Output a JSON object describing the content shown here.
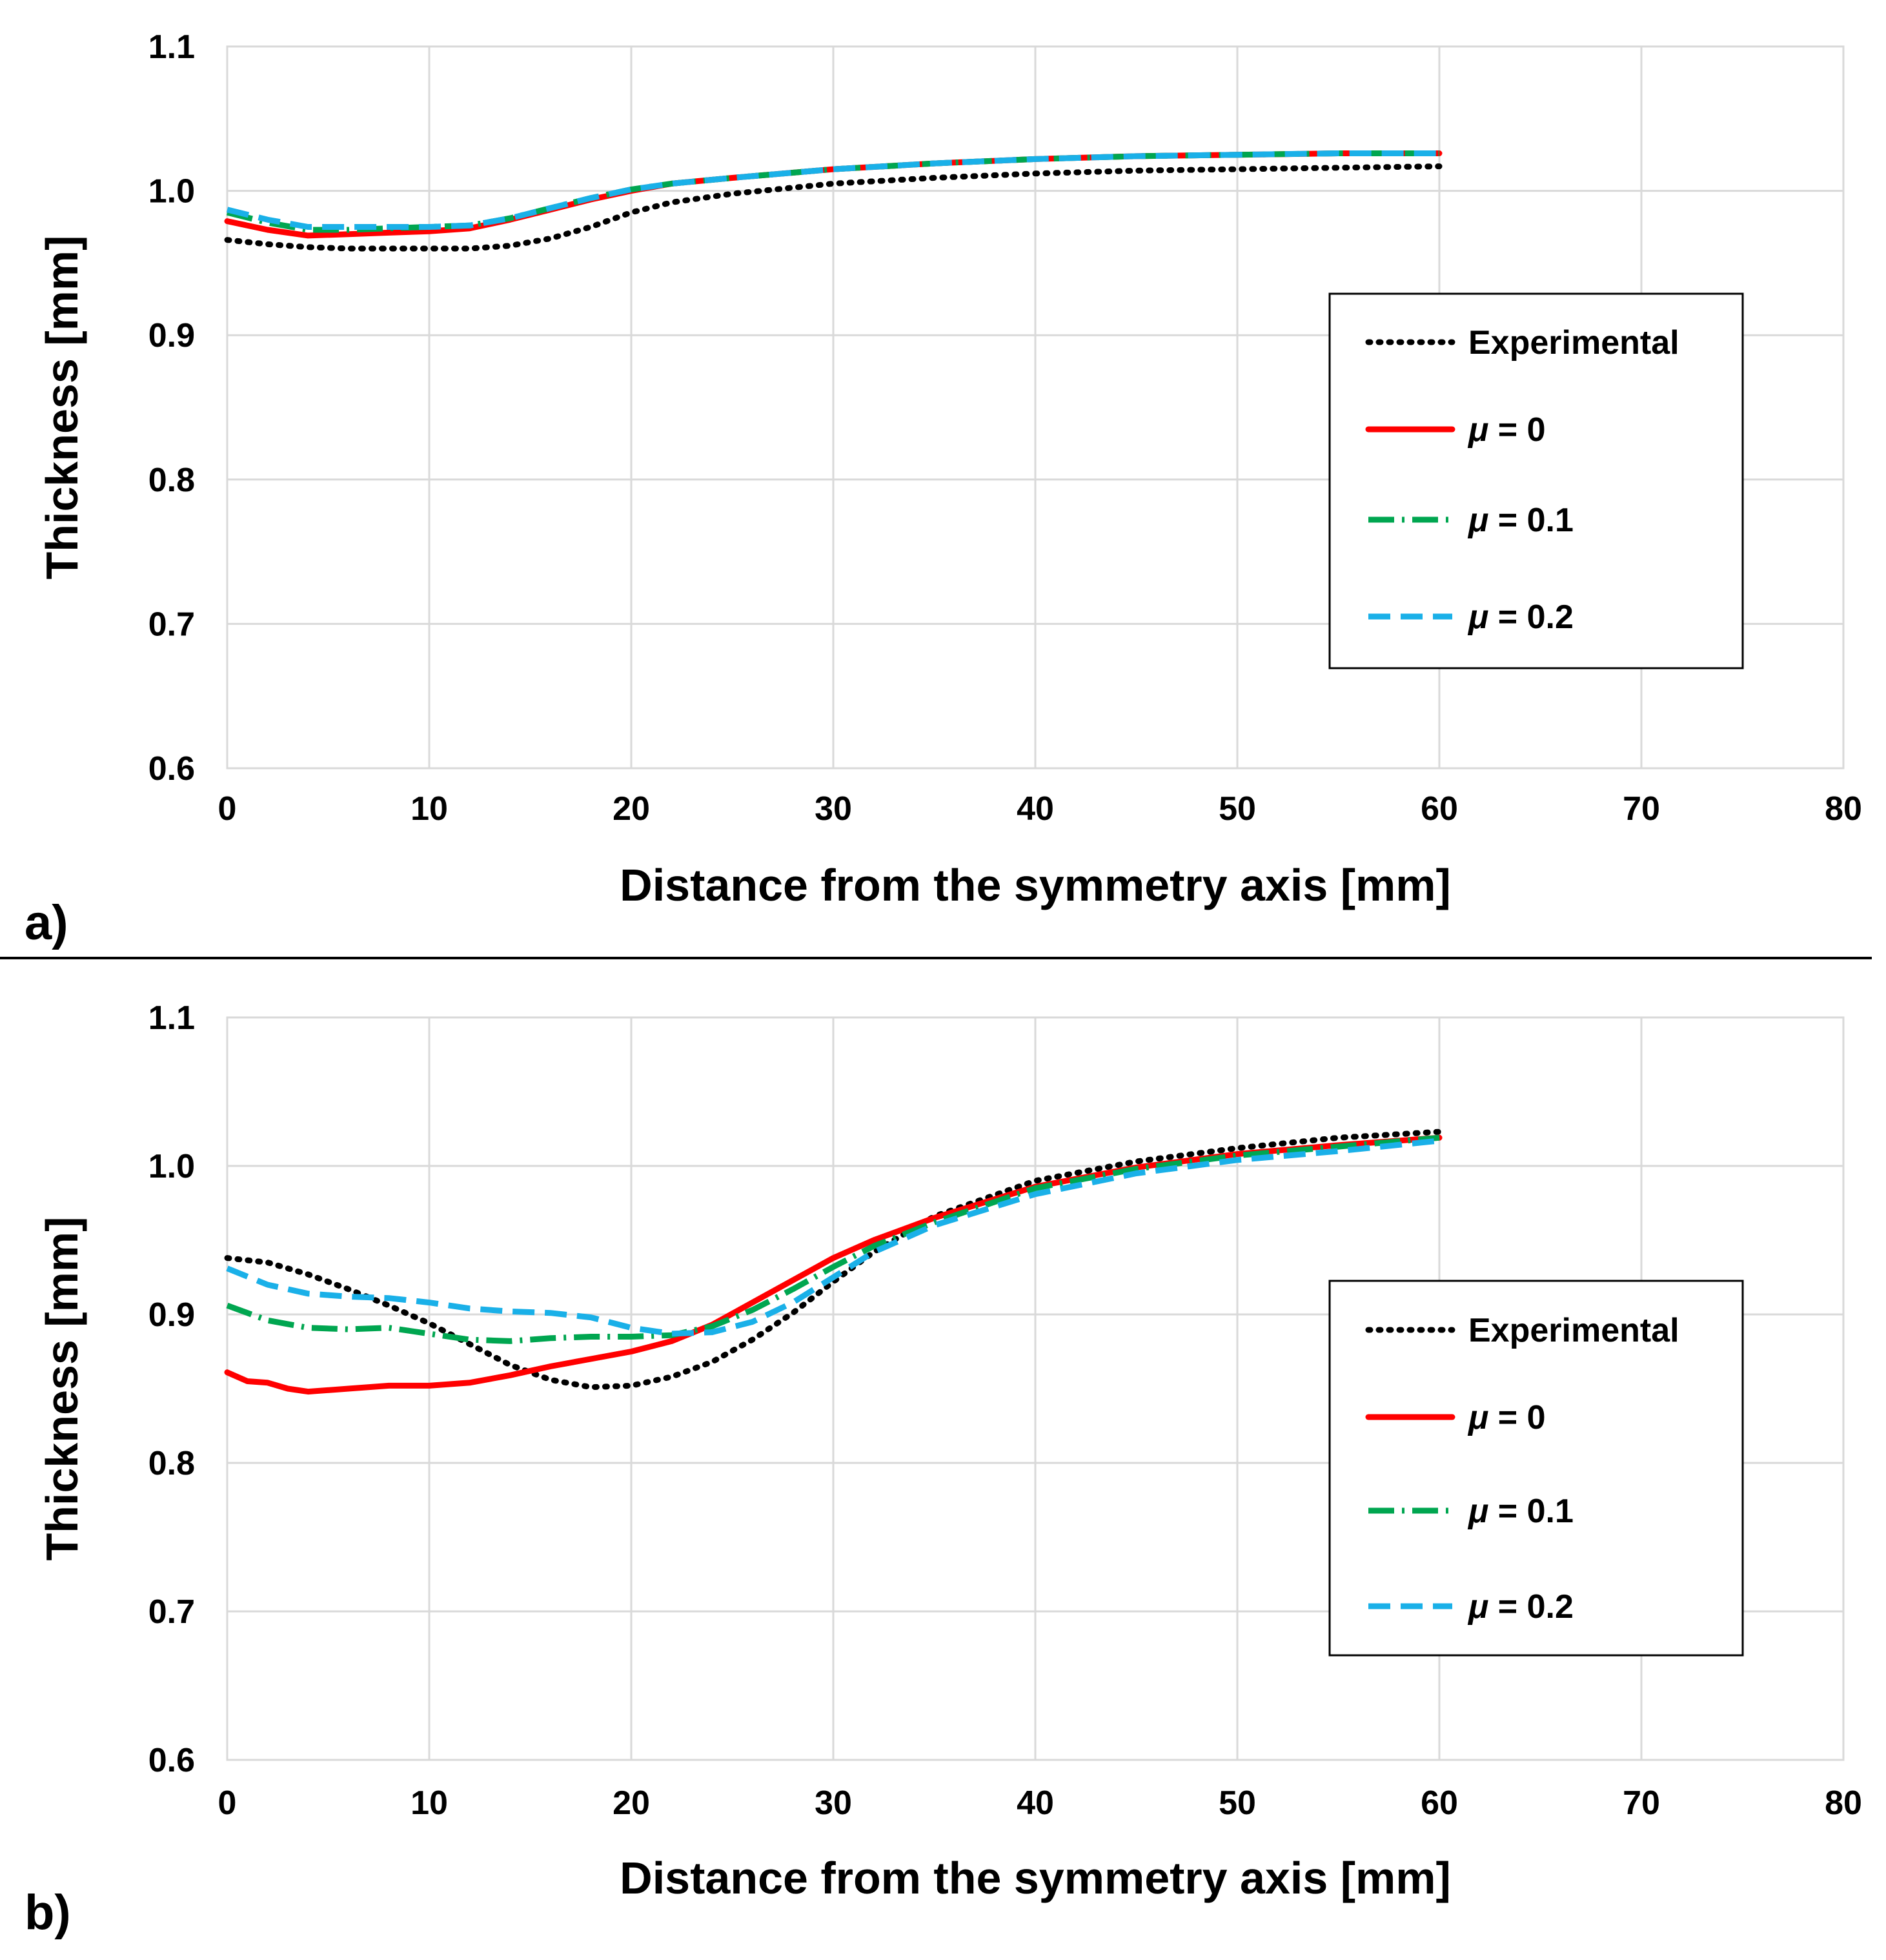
{
  "chart_data": [
    {
      "panel_label": "a)",
      "type": "line",
      "xlabel": "Distance from the symmetry axis  [mm]",
      "ylabel": "Thickness [mm]",
      "xlim": [
        0,
        80
      ],
      "ylim": [
        0.6,
        1.1
      ],
      "xticks": [
        "0",
        "10",
        "20",
        "30",
        "40",
        "50",
        "60",
        "70",
        "80"
      ],
      "yticks": [
        "0.6",
        "0.7",
        "0.8",
        "0.9",
        "1.0",
        "1.1"
      ],
      "grid": true,
      "legend_position": "right",
      "series": [
        {
          "name": "Experimental",
          "symbol": "",
          "rest": "Experimental",
          "color": "#000000",
          "style": "dotted",
          "x": [
            0,
            2,
            4,
            6,
            8,
            10,
            12,
            14,
            16,
            18,
            20,
            22,
            25,
            30,
            35,
            40,
            45,
            50,
            55,
            60
          ],
          "y": [
            0.966,
            0.963,
            0.961,
            0.96,
            0.96,
            0.96,
            0.96,
            0.962,
            0.967,
            0.975,
            0.985,
            0.992,
            0.998,
            1.005,
            1.009,
            1.012,
            1.014,
            1.015,
            1.016,
            1.017
          ]
        },
        {
          "name": "μ = 0",
          "symbol": "μ",
          "rest": " = 0",
          "color": "#ff0000",
          "style": "solid",
          "x": [
            0,
            2,
            4,
            6,
            8,
            10,
            12,
            14,
            16,
            18,
            20,
            22,
            25,
            30,
            35,
            40,
            45,
            50,
            55,
            60
          ],
          "y": [
            0.979,
            0.973,
            0.969,
            0.97,
            0.971,
            0.972,
            0.974,
            0.98,
            0.987,
            0.994,
            1.0,
            1.005,
            1.009,
            1.015,
            1.019,
            1.022,
            1.024,
            1.025,
            1.026,
            1.026
          ]
        },
        {
          "name": "μ = 0.1",
          "symbol": "μ",
          "rest": " = 0.1",
          "color": "#00a650",
          "style": "dashdot",
          "x": [
            0,
            2,
            4,
            6,
            8,
            10,
            12,
            14,
            16,
            18,
            20,
            22,
            25,
            30,
            35,
            40,
            45,
            50,
            55,
            60
          ],
          "y": [
            0.985,
            0.978,
            0.973,
            0.973,
            0.974,
            0.975,
            0.976,
            0.981,
            0.988,
            0.995,
            1.001,
            1.005,
            1.009,
            1.015,
            1.019,
            1.022,
            1.024,
            1.025,
            1.026,
            1.026
          ]
        },
        {
          "name": "μ = 0.2",
          "symbol": "μ",
          "rest": " = 0.2",
          "color": "#1ab0e8",
          "style": "dashed",
          "x": [
            0,
            2,
            4,
            6,
            8,
            10,
            12,
            14,
            16,
            18,
            20,
            22,
            25,
            30,
            35,
            40,
            45,
            50,
            55,
            60
          ],
          "y": [
            0.987,
            0.98,
            0.975,
            0.975,
            0.975,
            0.975,
            0.976,
            0.981,
            0.988,
            0.995,
            1.001,
            1.005,
            1.009,
            1.015,
            1.019,
            1.022,
            1.024,
            1.025,
            1.026,
            1.026
          ]
        }
      ]
    },
    {
      "panel_label": "b)",
      "type": "line",
      "xlabel": "Distance from the symmetry axis  [mm]",
      "ylabel": "Thickness [mm]",
      "xlim": [
        0,
        80
      ],
      "ylim": [
        0.6,
        1.1
      ],
      "xticks": [
        "0",
        "10",
        "20",
        "30",
        "40",
        "50",
        "60",
        "70",
        "80"
      ],
      "yticks": [
        "0.6",
        "0.7",
        "0.8",
        "0.9",
        "1.0",
        "1.1"
      ],
      "grid": true,
      "legend_position": "right",
      "series": [
        {
          "name": "Experimental",
          "symbol": "",
          "rest": "Experimental",
          "color": "#000000",
          "style": "dotted",
          "x": [
            0,
            2,
            4,
            6,
            8,
            10,
            12,
            14,
            16,
            18,
            20,
            22,
            24,
            26,
            28,
            30,
            32,
            35,
            40,
            45,
            50,
            55,
            60
          ],
          "y": [
            0.938,
            0.935,
            0.927,
            0.917,
            0.906,
            0.894,
            0.88,
            0.866,
            0.856,
            0.851,
            0.852,
            0.858,
            0.868,
            0.883,
            0.901,
            0.922,
            0.942,
            0.966,
            0.99,
            1.003,
            1.012,
            1.019,
            1.023
          ]
        },
        {
          "name": "μ = 0",
          "symbol": "μ",
          "rest": " = 0",
          "color": "#ff0000",
          "style": "solid",
          "x": [
            0,
            1,
            2,
            3,
            4,
            6,
            8,
            10,
            12,
            14,
            16,
            18,
            20,
            22,
            24,
            26,
            28,
            30,
            32,
            35,
            40,
            45,
            50,
            55,
            60
          ],
          "y": [
            0.861,
            0.855,
            0.854,
            0.85,
            0.848,
            0.85,
            0.852,
            0.852,
            0.854,
            0.859,
            0.865,
            0.87,
            0.875,
            0.882,
            0.893,
            0.908,
            0.923,
            0.938,
            0.95,
            0.965,
            0.986,
            0.999,
            1.008,
            1.014,
            1.019
          ]
        },
        {
          "name": "μ = 0.1",
          "symbol": "μ",
          "rest": " = 0.1",
          "color": "#00a650",
          "style": "dashdot",
          "x": [
            0,
            2,
            4,
            6,
            8,
            10,
            12,
            14,
            16,
            18,
            20,
            22,
            24,
            26,
            28,
            30,
            32,
            35,
            40,
            45,
            50,
            55,
            60
          ],
          "y": [
            0.906,
            0.896,
            0.891,
            0.89,
            0.891,
            0.887,
            0.883,
            0.882,
            0.884,
            0.885,
            0.885,
            0.886,
            0.892,
            0.903,
            0.917,
            0.932,
            0.946,
            0.962,
            0.985,
            0.998,
            1.007,
            1.013,
            1.019
          ]
        },
        {
          "name": "μ = 0.2",
          "symbol": "μ",
          "rest": " = 0.2",
          "color": "#1ab0e8",
          "style": "dashed",
          "x": [
            0,
            2,
            4,
            6,
            8,
            10,
            12,
            14,
            16,
            18,
            20,
            22,
            24,
            26,
            28,
            30,
            32,
            35,
            40,
            45,
            50,
            55,
            60
          ],
          "y": [
            0.931,
            0.92,
            0.914,
            0.912,
            0.911,
            0.908,
            0.904,
            0.902,
            0.901,
            0.898,
            0.891,
            0.887,
            0.888,
            0.895,
            0.908,
            0.925,
            0.942,
            0.96,
            0.981,
            0.995,
            1.004,
            1.01,
            1.017
          ]
        }
      ]
    }
  ]
}
